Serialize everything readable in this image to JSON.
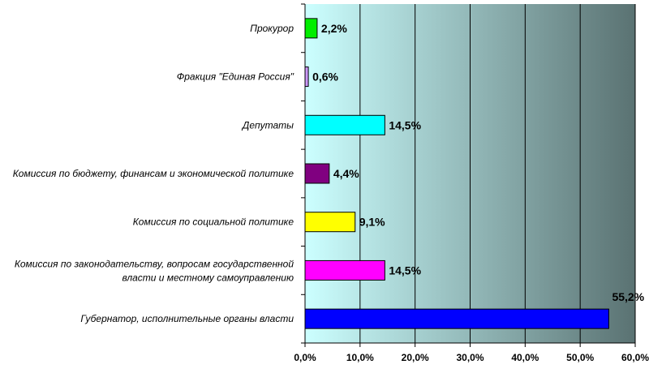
{
  "chart_data": {
    "type": "bar",
    "orientation": "horizontal",
    "title": "",
    "xlabel": "",
    "ylabel": "",
    "xlim": [
      0,
      60
    ],
    "x_ticks": [
      "0,0%",
      "10,0%",
      "20,0%",
      "30,0%",
      "40,0%",
      "50,0%",
      "60,0%"
    ],
    "grid": "vertical lines",
    "legend": "none",
    "background": {
      "from": "#ccffff",
      "to": "#5a7272"
    },
    "categories": [
      [
        "Прокурор"
      ],
      [
        "Фракция \"Единая Россия\""
      ],
      [
        "Депутаты"
      ],
      [
        "Комиссия по бюджету, финансам и экономической политике"
      ],
      [
        "Комиссия по социальной политике"
      ],
      [
        "Комиссия по законодательству, вопросам государственной",
        "власти и местному самоуправлению"
      ],
      [
        "Губернатор, исполнительные органы власти"
      ]
    ],
    "values": [
      2.2,
      0.6,
      14.5,
      4.4,
      9.1,
      14.5,
      55.2
    ],
    "value_labels": [
      "2,2%",
      "0,6%",
      "14,5%",
      "4,4%",
      "9,1%",
      "14,5%",
      "55,2%"
    ],
    "colors": [
      "#00ee00",
      "#cc99ff",
      "#00ffff",
      "#800080",
      "#ffff00",
      "#ff00ff",
      "#0000ff"
    ]
  }
}
